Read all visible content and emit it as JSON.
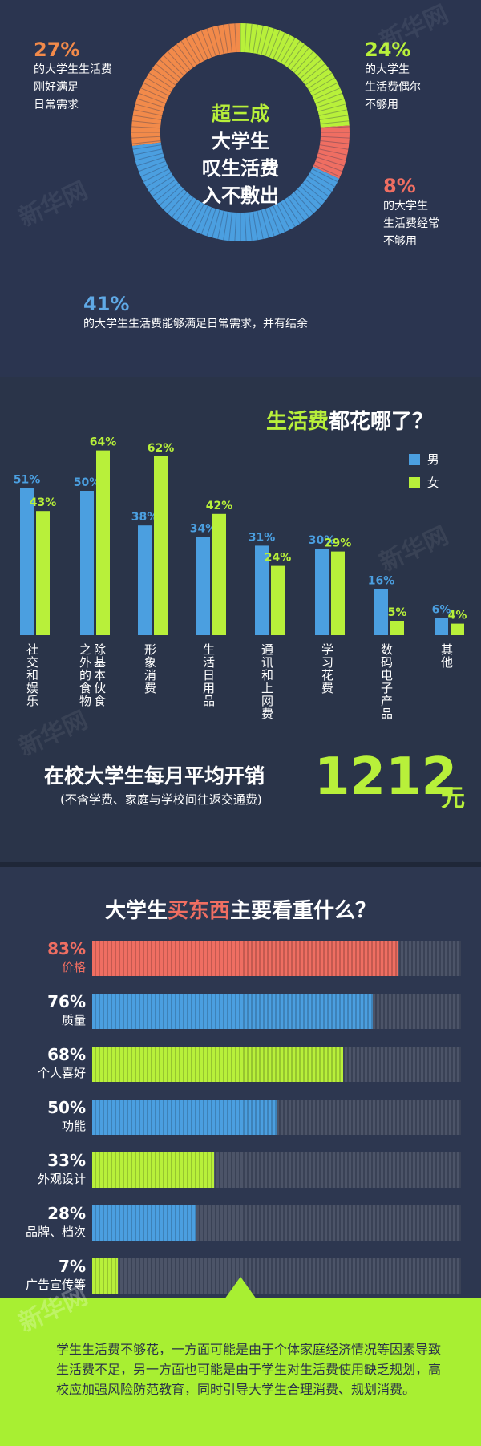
{
  "colors": {
    "orange": "#f28a4a",
    "green": "#b8f03a",
    "red": "#ef6e62",
    "blue": "#4b9fe0",
    "bg": "#2b3550",
    "track": "#4c5468"
  },
  "donut": {
    "title_lines": [
      "超三成",
      "大学生",
      "叹生活费",
      "入不敷出"
    ],
    "segments": [
      {
        "pct": "27%",
        "text_lines": [
          "的大学生生活费",
          "刚好满足",
          "日常需求"
        ],
        "value": 27,
        "color": "#f28a4a"
      },
      {
        "pct": "24%",
        "text_lines": [
          "的大学生",
          "生活费偶尔",
          "不够用"
        ],
        "value": 24,
        "color": "#b8f03a"
      },
      {
        "pct": "8%",
        "text_lines": [
          "的大学生",
          "生活费经常",
          "不够用"
        ],
        "value": 8,
        "color": "#ef6e62"
      },
      {
        "pct": "41%",
        "text_lines": [
          "的大学生生活费能够满足日常需求，并有结余"
        ],
        "value": 41,
        "color": "#4b9fe0"
      }
    ]
  },
  "spending": {
    "title_hl": "生活费",
    "title_rest": "都花哪了？",
    "legend": [
      {
        "label": "男",
        "color": "#4b9fe0"
      },
      {
        "label": "女",
        "color": "#b8f03a"
      }
    ],
    "avg_title": "在校大学生每月平均开销",
    "avg_sub": "(不含学费、家庭与学校间往返交通费)",
    "avg_value": "1212",
    "avg_unit": "元"
  },
  "factors": {
    "title_a": "大学生",
    "title_hl": "买东西",
    "title_b": "主要看重什么？",
    "items": [
      {
        "pct": "83%",
        "label": "价格",
        "value": 83,
        "color": "#ef6e62"
      },
      {
        "pct": "76%",
        "label": "质量",
        "value": 76,
        "color": "#4b9fe0"
      },
      {
        "pct": "68%",
        "label": "个人喜好",
        "value": 68,
        "color": "#b8f03a"
      },
      {
        "pct": "50%",
        "label": "功能",
        "value": 50,
        "color": "#4b9fe0"
      },
      {
        "pct": "33%",
        "label": "外观设计",
        "value": 33,
        "color": "#b8f03a"
      },
      {
        "pct": "28%",
        "label": "品牌、档次",
        "value": 28,
        "color": "#4b9fe0"
      },
      {
        "pct": "7%",
        "label": "广告宣传等",
        "value": 7,
        "color": "#b8f03a"
      }
    ]
  },
  "note": {
    "text": "学生生活费不够花，一方面可能是由于个体家庭经济情况等因素导致生活费不足，另一方面也可能是由于学生对生活费使用缺乏规划，高校应加强风险防范教育，同时引导大学生合理消费、规划消费。"
  },
  "watermark": "新华网",
  "chart_data": [
    {
      "type": "pie",
      "title": "超三成大学生叹生活费入不敷出",
      "categories": [
        "的大学生生活费刚好满足日常需求",
        "的大学生生活费偶尔不够用",
        "的大学生生活费经常不够用",
        "的大学生生活费能够满足日常需求，并有结余"
      ],
      "values": [
        27,
        24,
        8,
        41
      ]
    },
    {
      "type": "bar",
      "title": "生活费都花哪了？",
      "categories": [
        "社交和娱乐",
        "除基本伙食之外的食物",
        "形象消费",
        "生活日用品",
        "通讯和上网费",
        "学习花费",
        "数码电子产品",
        "其他"
      ],
      "series": [
        {
          "name": "男",
          "values": [
            51,
            50,
            38,
            34,
            31,
            30,
            16,
            6
          ],
          "labels": [
            "51%",
            "50%",
            "38%",
            "34%",
            "31%",
            "30%",
            "16%",
            "6%"
          ]
        },
        {
          "name": "女",
          "values": [
            43,
            64,
            62,
            42,
            24,
            29,
            5,
            4
          ],
          "labels": [
            "43%",
            "64%",
            "62%",
            "42%",
            "24%",
            "29%",
            "5%",
            "4%"
          ]
        }
      ]
    },
    {
      "type": "bar",
      "title": "大学生买东西主要看重什么？",
      "categories": [
        "价格",
        "质量",
        "个人喜好",
        "功能",
        "外观设计",
        "品牌、档次",
        "广告宣传等"
      ],
      "values": [
        83,
        76,
        68,
        50,
        33,
        28,
        7
      ]
    }
  ]
}
